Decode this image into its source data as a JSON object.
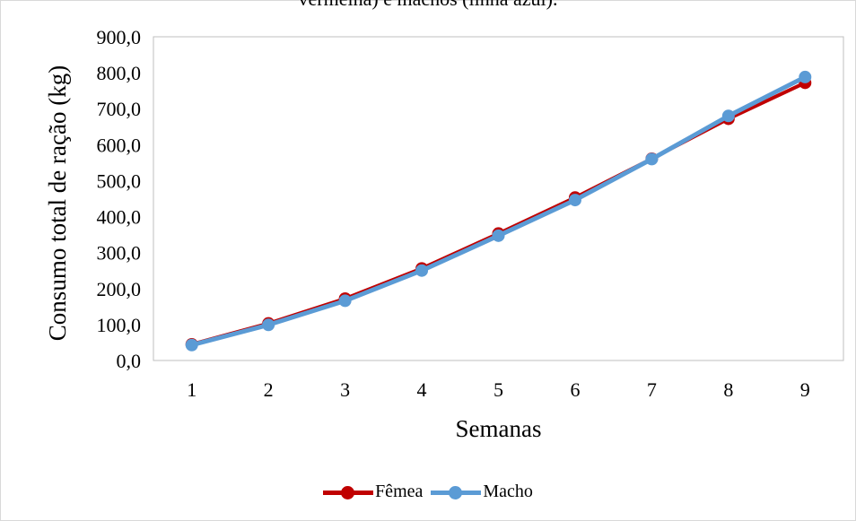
{
  "caption": "vermelha) e machos (linha azul).",
  "chart_data": {
    "type": "line",
    "title": "",
    "xlabel": "Semanas",
    "ylabel": "Consumo total de ração (kg)",
    "categories": [
      "1",
      "2",
      "3",
      "4",
      "5",
      "6",
      "7",
      "8",
      "9"
    ],
    "ylim": [
      0,
      900
    ],
    "yticks": [
      0,
      100,
      200,
      300,
      400,
      500,
      600,
      700,
      800,
      900
    ],
    "ytick_labels": [
      "0,0",
      "100,0",
      "200,0",
      "300,0",
      "400,0",
      "500,0",
      "600,0",
      "700,0",
      "800,0",
      "900,0"
    ],
    "grid": false,
    "legend_position": "bottom",
    "series": [
      {
        "name": "Fêmea",
        "color": "#c00000",
        "values": [
          45,
          103,
          172,
          256,
          353,
          453,
          561,
          672,
          772
        ]
      },
      {
        "name": "Macho",
        "color": "#5b9bd5",
        "values": [
          43,
          99,
          166,
          250,
          347,
          446,
          560,
          680,
          788
        ]
      }
    ]
  }
}
